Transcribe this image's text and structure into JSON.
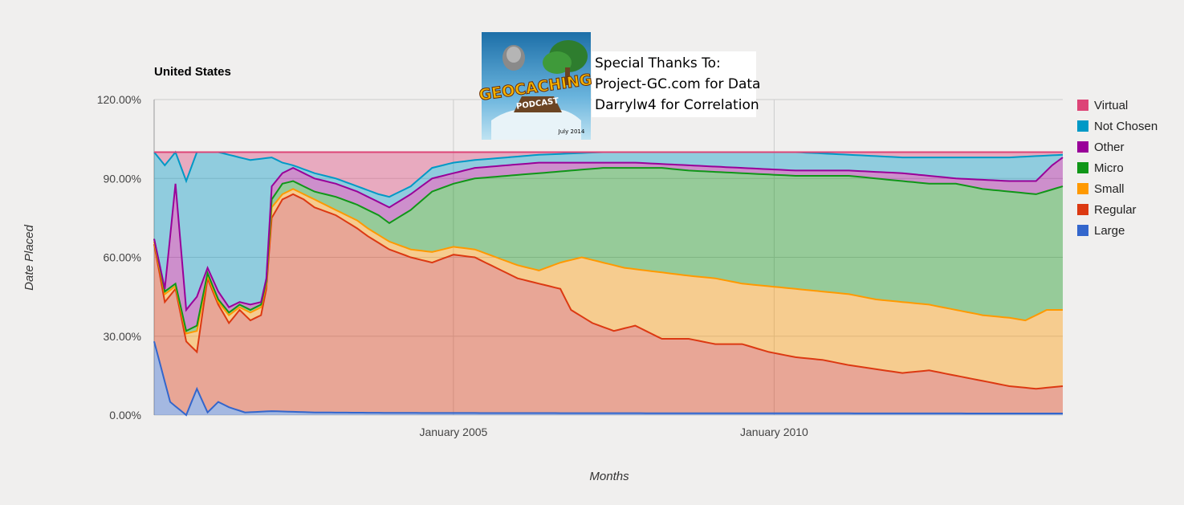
{
  "chart_data": {
    "type": "area",
    "stacked": true,
    "normalized": true,
    "title": "United States",
    "xlabel": "Months",
    "ylabel": "Date Placed",
    "ylim": [
      0,
      120
    ],
    "y_ticks": [
      "0.00%",
      "30.00%",
      "60.00%",
      "90.00%",
      "120.00%"
    ],
    "x_range": [
      "2000-05",
      "2014-07"
    ],
    "x_ticks": [
      {
        "date": "2005-01",
        "label": "January 2005"
      },
      {
        "date": "2010-01",
        "label": "January 2010"
      }
    ],
    "grid": true,
    "legend_position": "right",
    "series": [
      {
        "name": "Large",
        "color": "#3366cc",
        "cumulative_knots": [
          [
            0,
            28
          ],
          [
            3,
            5
          ],
          [
            6,
            0
          ],
          [
            8,
            10
          ],
          [
            10,
            1
          ],
          [
            12,
            5
          ],
          [
            14,
            3
          ],
          [
            17,
            1
          ],
          [
            22,
            1.5
          ],
          [
            30,
            1
          ],
          [
            50,
            0.8
          ],
          [
            100,
            0.7
          ],
          [
            170,
            0.6
          ]
        ]
      },
      {
        "name": "Regular",
        "color": "#dc3912",
        "cumulative_knots": [
          [
            0,
            65
          ],
          [
            2,
            43
          ],
          [
            4,
            48
          ],
          [
            6,
            28
          ],
          [
            8,
            24
          ],
          [
            10,
            52
          ],
          [
            12,
            42
          ],
          [
            14,
            35
          ],
          [
            16,
            40
          ],
          [
            18,
            36
          ],
          [
            20,
            38
          ],
          [
            21,
            48
          ],
          [
            22,
            75
          ],
          [
            24,
            82
          ],
          [
            26,
            84
          ],
          [
            28,
            82
          ],
          [
            30,
            79
          ],
          [
            34,
            76
          ],
          [
            38,
            71
          ],
          [
            40,
            68
          ],
          [
            44,
            63
          ],
          [
            48,
            60
          ],
          [
            52,
            58
          ],
          [
            56,
            61
          ],
          [
            60,
            60
          ],
          [
            64,
            56
          ],
          [
            68,
            52
          ],
          [
            72,
            50
          ],
          [
            76,
            48
          ],
          [
            78,
            40
          ],
          [
            82,
            35
          ],
          [
            86,
            32
          ],
          [
            90,
            34
          ],
          [
            95,
            29
          ],
          [
            100,
            29
          ],
          [
            105,
            27
          ],
          [
            110,
            27
          ],
          [
            115,
            24
          ],
          [
            120,
            22
          ],
          [
            125,
            21
          ],
          [
            130,
            19
          ],
          [
            140,
            16
          ],
          [
            145,
            17
          ],
          [
            150,
            15
          ],
          [
            155,
            13
          ],
          [
            160,
            11
          ],
          [
            165,
            10
          ],
          [
            170,
            11
          ]
        ]
      },
      {
        "name": "Small",
        "color": "#ff9900",
        "cumulative_knots": [
          [
            0,
            66
          ],
          [
            2,
            46
          ],
          [
            4,
            49
          ],
          [
            6,
            31
          ],
          [
            8,
            32
          ],
          [
            10,
            53
          ],
          [
            12,
            43
          ],
          [
            14,
            38
          ],
          [
            16,
            41
          ],
          [
            18,
            39
          ],
          [
            20,
            41
          ],
          [
            21,
            50
          ],
          [
            22,
            79
          ],
          [
            24,
            84
          ],
          [
            26,
            86
          ],
          [
            28,
            84
          ],
          [
            30,
            82
          ],
          [
            34,
            78
          ],
          [
            38,
            74
          ],
          [
            40,
            71
          ],
          [
            44,
            66
          ],
          [
            48,
            63
          ],
          [
            52,
            62
          ],
          [
            56,
            64
          ],
          [
            60,
            63
          ],
          [
            64,
            60
          ],
          [
            68,
            57
          ],
          [
            72,
            55
          ],
          [
            76,
            58
          ],
          [
            80,
            60
          ],
          [
            84,
            58
          ],
          [
            88,
            56
          ],
          [
            92,
            55
          ],
          [
            96,
            54
          ],
          [
            100,
            53
          ],
          [
            105,
            52
          ],
          [
            110,
            50
          ],
          [
            115,
            49
          ],
          [
            120,
            48
          ],
          [
            125,
            47
          ],
          [
            130,
            46
          ],
          [
            135,
            44
          ],
          [
            140,
            43
          ],
          [
            145,
            42
          ],
          [
            150,
            40
          ],
          [
            155,
            38
          ],
          [
            160,
            37
          ],
          [
            163,
            36
          ],
          [
            167,
            40
          ],
          [
            170,
            40
          ]
        ]
      },
      {
        "name": "Micro",
        "color": "#109618",
        "cumulative_knots": [
          [
            0,
            67
          ],
          [
            2,
            47
          ],
          [
            4,
            50
          ],
          [
            6,
            32
          ],
          [
            8,
            34
          ],
          [
            10,
            54
          ],
          [
            12,
            44
          ],
          [
            14,
            39
          ],
          [
            16,
            42
          ],
          [
            18,
            40
          ],
          [
            20,
            42
          ],
          [
            21,
            51
          ],
          [
            22,
            82
          ],
          [
            24,
            88
          ],
          [
            26,
            89
          ],
          [
            28,
            87
          ],
          [
            30,
            85
          ],
          [
            34,
            83
          ],
          [
            38,
            80
          ],
          [
            42,
            76
          ],
          [
            44,
            73
          ],
          [
            48,
            78
          ],
          [
            52,
            85
          ],
          [
            56,
            88
          ],
          [
            60,
            90
          ],
          [
            66,
            91
          ],
          [
            72,
            92
          ],
          [
            78,
            93
          ],
          [
            84,
            94
          ],
          [
            90,
            94
          ],
          [
            95,
            94
          ],
          [
            100,
            93
          ],
          [
            110,
            92
          ],
          [
            120,
            91
          ],
          [
            130,
            91
          ],
          [
            135,
            90
          ],
          [
            140,
            89
          ],
          [
            145,
            88
          ],
          [
            150,
            88
          ],
          [
            155,
            86
          ],
          [
            160,
            85
          ],
          [
            165,
            84
          ],
          [
            170,
            87
          ]
        ]
      },
      {
        "name": "Other",
        "color": "#990099",
        "cumulative_knots": [
          [
            0,
            67
          ],
          [
            2,
            48
          ],
          [
            4,
            88
          ],
          [
            6,
            40
          ],
          [
            8,
            45
          ],
          [
            10,
            56
          ],
          [
            12,
            47
          ],
          [
            14,
            41
          ],
          [
            16,
            43
          ],
          [
            18,
            42
          ],
          [
            20,
            43
          ],
          [
            21,
            52
          ],
          [
            22,
            87
          ],
          [
            24,
            92
          ],
          [
            26,
            94
          ],
          [
            28,
            92
          ],
          [
            30,
            90
          ],
          [
            34,
            88
          ],
          [
            38,
            85
          ],
          [
            42,
            81
          ],
          [
            44,
            79
          ],
          [
            48,
            84
          ],
          [
            52,
            90
          ],
          [
            56,
            92
          ],
          [
            60,
            94
          ],
          [
            66,
            95
          ],
          [
            72,
            96
          ],
          [
            78,
            96
          ],
          [
            84,
            96
          ],
          [
            90,
            96
          ],
          [
            100,
            95
          ],
          [
            110,
            94
          ],
          [
            120,
            93
          ],
          [
            130,
            93
          ],
          [
            140,
            92
          ],
          [
            145,
            91
          ],
          [
            150,
            90
          ],
          [
            160,
            89
          ],
          [
            165,
            89
          ],
          [
            168,
            95
          ],
          [
            170,
            98
          ]
        ]
      },
      {
        "name": "Not Chosen",
        "color": "#0099c6",
        "cumulative_knots": [
          [
            0,
            100
          ],
          [
            2,
            95
          ],
          [
            4,
            100
          ],
          [
            6,
            89
          ],
          [
            8,
            100
          ],
          [
            12,
            100
          ],
          [
            14,
            99
          ],
          [
            18,
            97
          ],
          [
            22,
            98
          ],
          [
            24,
            96
          ],
          [
            26,
            95
          ],
          [
            30,
            92
          ],
          [
            34,
            90
          ],
          [
            38,
            87
          ],
          [
            42,
            84
          ],
          [
            44,
            83
          ],
          [
            48,
            87
          ],
          [
            52,
            94
          ],
          [
            56,
            96
          ],
          [
            60,
            97
          ],
          [
            66,
            98
          ],
          [
            72,
            99
          ],
          [
            78,
            99.5
          ],
          [
            84,
            100
          ],
          [
            120,
            100
          ],
          [
            130,
            99
          ],
          [
            140,
            98
          ],
          [
            150,
            98
          ],
          [
            160,
            98
          ],
          [
            170,
            99
          ]
        ]
      },
      {
        "name": "Virtual",
        "color": "#dd4477",
        "cumulative_knots": [
          [
            0,
            100
          ],
          [
            170,
            100
          ]
        ]
      }
    ]
  },
  "annotation": {
    "lines": [
      "Special Thanks To:",
      "Project-GC.com for Data",
      "Darrylw4 for Correlation"
    ],
    "logo_title": "GEOCACHING",
    "logo_subtitle": "PODCAST",
    "logo_date": "July 2014"
  }
}
